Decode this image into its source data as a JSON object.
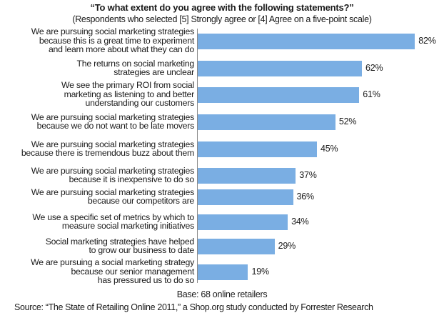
{
  "chart_data": {
    "type": "bar",
    "orientation": "horizontal",
    "title": "“To what extent do you agree with the following statements?”",
    "subtitle": "(Respondents who selected [5] Strongly agree or [4] Agree on a five-point scale)",
    "categories": [
      [
        "We are pursuing social marketing strategies",
        "because this is a great time to experiment",
        "and learn more about what they can do"
      ],
      [
        "The returns on social marketing",
        "strategies are unclear"
      ],
      [
        "We see the primary ROI from social",
        "marketing as listening to and better",
        "understanding our customers"
      ],
      [
        "We are pursuing social marketing strategies",
        "because we do not want to be late movers"
      ],
      [
        "We are pursuing social marketing strategies",
        "because there is tremendous buzz about them"
      ],
      [
        "We are pursuing social marketing strategies",
        "because it is inexpensive to do so"
      ],
      [
        "We are pursuing social marketing strategies",
        "because our competitors are"
      ],
      [
        "We use a specific set of metrics by which to",
        "measure social marketing initiatives"
      ],
      [
        "Social marketing strategies have helped",
        "to grow our business to date"
      ],
      [
        "We are pursuing a social marketing strategy",
        "because our senior management",
        "has pressured us to do so"
      ]
    ],
    "values": [
      82,
      62,
      61,
      52,
      45,
      37,
      36,
      34,
      29,
      19
    ],
    "value_labels": [
      "82%",
      "62%",
      "61%",
      "52%",
      "45%",
      "37%",
      "36%",
      "34%",
      "29%",
      "19%"
    ],
    "xlabel": "",
    "ylabel": "",
    "unit": "%",
    "grid": false,
    "legend": null,
    "bar_color": "#7aaee3",
    "base_note": "Base: 68 online retailers",
    "source": "Source: “The State of Retailing Online 2011,” a Shop.org study conducted by Forrester Research"
  },
  "header": {
    "title": "“To what extent do you agree with the following statements?”",
    "subtitle": "(Respondents who selected [5] Strongly agree or [4] Agree on a five-point scale)"
  },
  "footer": {
    "base": "Base: 68 online retailers",
    "source": "Source: “The State of Retailing Online 2011,” a Shop.org study conducted by Forrester Research"
  }
}
